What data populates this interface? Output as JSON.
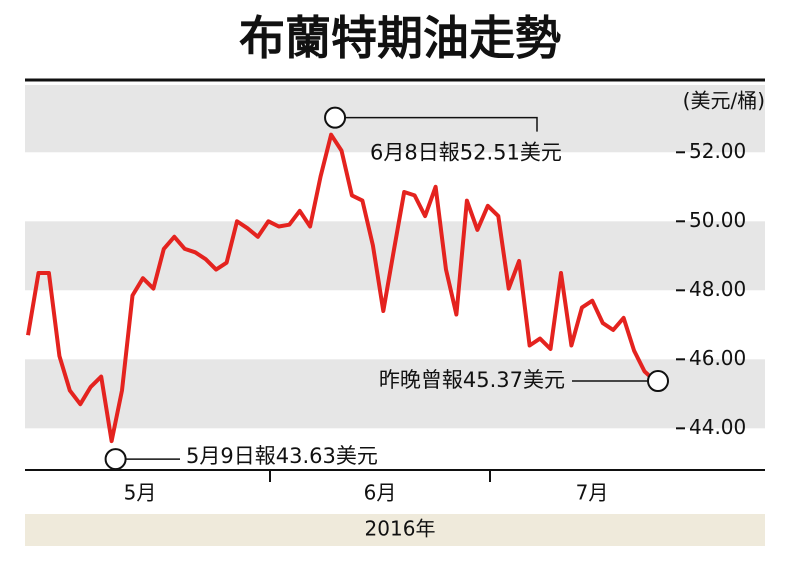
{
  "chart_data": {
    "type": "line",
    "title": "布蘭特期油走勢",
    "y_label": "(美元/桶)",
    "x_labels": [
      "5月",
      "6月",
      "7月"
    ],
    "x_title": "2016年",
    "color": "#e4231f",
    "grid": "bands",
    "ylim": [
      42.85,
      53.95
    ],
    "yticks": [
      {
        "value": 44,
        "label": "44.00"
      },
      {
        "value": 46,
        "label": "46.00"
      },
      {
        "value": 48,
        "label": "48.00"
      },
      {
        "value": 50,
        "label": "50.00"
      },
      {
        "value": 52,
        "label": "52.00"
      }
    ],
    "values": [
      46.7,
      48.5,
      48.5,
      46.1,
      45.1,
      44.7,
      45.2,
      45.5,
      43.63,
      45.1,
      47.85,
      48.35,
      48.05,
      49.2,
      49.55,
      49.2,
      49.1,
      48.9,
      48.6,
      48.8,
      50.0,
      49.8,
      49.55,
      50.0,
      49.85,
      49.9,
      50.3,
      49.85,
      51.3,
      52.51,
      52.05,
      50.75,
      50.6,
      49.3,
      47.4,
      49.15,
      50.85,
      50.75,
      50.15,
      51.0,
      48.6,
      47.3,
      50.6,
      49.75,
      50.45,
      50.15,
      48.05,
      48.85,
      46.4,
      46.6,
      46.3,
      48.5,
      46.4,
      47.5,
      47.7,
      47.05,
      46.85,
      47.2,
      46.25,
      45.65,
      45.37
    ],
    "annotations": [
      "6月8日報52.51美元",
      "5月9日報43.63美元",
      "昨晚曾報45.37美元"
    ]
  }
}
